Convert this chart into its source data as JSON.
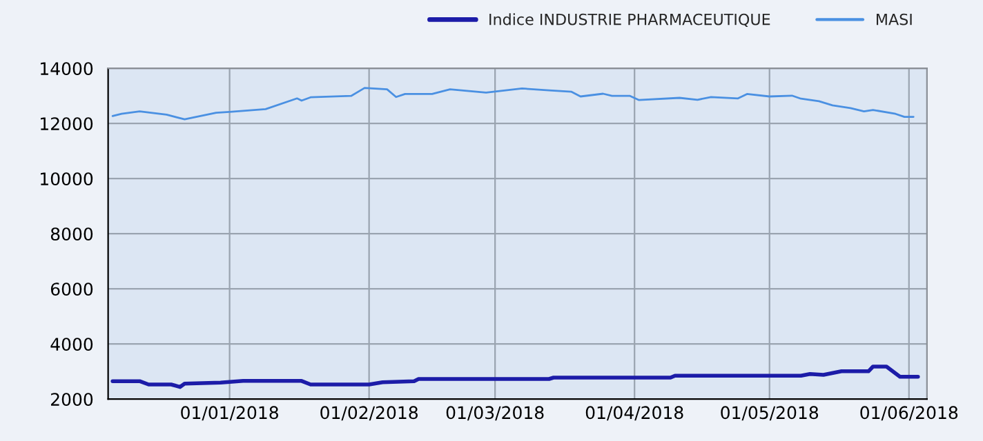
{
  "chart_data": {
    "type": "line",
    "xlim": [
      "2017-12-05",
      "2018-06-05"
    ],
    "xticks": [
      {
        "value": "2018-01-01",
        "label": "01/01/2018"
      },
      {
        "value": "2018-02-01",
        "label": "01/02/2018"
      },
      {
        "value": "2018-03-01",
        "label": "01/03/2018"
      },
      {
        "value": "2018-04-01",
        "label": "01/04/2018"
      },
      {
        "value": "2018-05-01",
        "label": "01/05/2018"
      },
      {
        "value": "2018-06-01",
        "label": "01/06/2018"
      }
    ],
    "ylim": [
      2000,
      14000
    ],
    "yticks": [
      2000,
      4000,
      6000,
      8000,
      10000,
      12000,
      14000
    ],
    "grid": true,
    "legend": "top right",
    "marker": "none",
    "line_style": "solid",
    "series": [
      {
        "name": "Indice INDUSTRIE PHARMACEUTIQUE",
        "color": "#1c1ca8",
        "x": [
          "2017-12-06",
          "2017-12-12",
          "2017-12-14",
          "2017-12-19",
          "2017-12-21",
          "2017-12-22",
          "2017-12-30",
          "2018-01-04",
          "2018-01-17",
          "2018-01-19",
          "2018-02-01",
          "2018-02-04",
          "2018-02-11",
          "2018-02-12",
          "2018-03-13",
          "2018-03-14",
          "2018-04-09",
          "2018-04-10",
          "2018-05-08",
          "2018-05-10",
          "2018-05-13",
          "2018-05-17",
          "2018-05-23",
          "2018-05-24",
          "2018-05-27",
          "2018-05-30",
          "2018-06-03"
        ],
        "values": [
          2650,
          2650,
          2530,
          2530,
          2440,
          2560,
          2600,
          2660,
          2660,
          2530,
          2530,
          2610,
          2650,
          2730,
          2730,
          2780,
          2780,
          2850,
          2850,
          2910,
          2880,
          3010,
          3010,
          3180,
          3180,
          2810,
          2810
        ]
      },
      {
        "name": "MASI",
        "color": "#4a90e2",
        "x": [
          "2017-12-06",
          "2017-12-08",
          "2017-12-12",
          "2017-12-18",
          "2017-12-22",
          "2017-12-29",
          "2018-01-01",
          "2018-01-09",
          "2018-01-16",
          "2018-01-17",
          "2018-01-19",
          "2018-01-28",
          "2018-01-31",
          "2018-02-05",
          "2018-02-07",
          "2018-02-09",
          "2018-02-15",
          "2018-02-19",
          "2018-02-27",
          "2018-03-07",
          "2018-03-13",
          "2018-03-18",
          "2018-03-20",
          "2018-03-25",
          "2018-03-27",
          "2018-03-31",
          "2018-04-02",
          "2018-04-11",
          "2018-04-15",
          "2018-04-18",
          "2018-04-24",
          "2018-04-26",
          "2018-05-01",
          "2018-05-06",
          "2018-05-08",
          "2018-05-12",
          "2018-05-15",
          "2018-05-19",
          "2018-05-22",
          "2018-05-24",
          "2018-05-29",
          "2018-05-31",
          "2018-06-02"
        ],
        "values": [
          12270,
          12350,
          12440,
          12320,
          12150,
          12390,
          12420,
          12520,
          12910,
          12830,
          12950,
          13000,
          13290,
          13240,
          12960,
          13070,
          13070,
          13240,
          13120,
          13270,
          13200,
          13150,
          12980,
          13080,
          13000,
          13000,
          12850,
          12930,
          12860,
          12960,
          12910,
          13070,
          12980,
          13010,
          12900,
          12810,
          12660,
          12560,
          12440,
          12490,
          12350,
          12240,
          12240
        ]
      }
    ]
  }
}
